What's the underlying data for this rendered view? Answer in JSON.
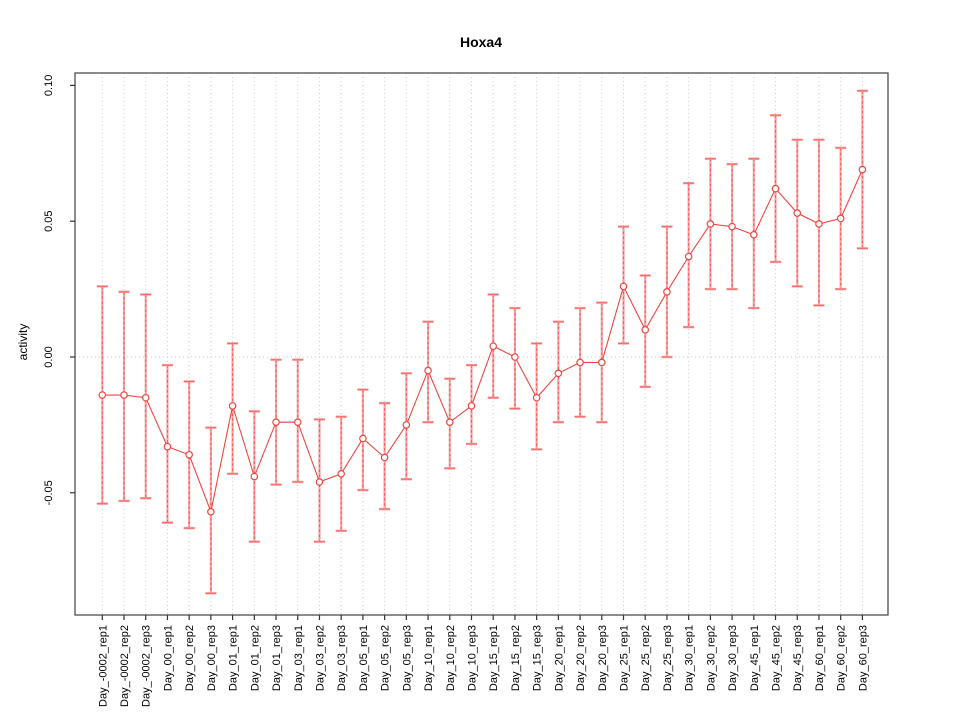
{
  "window": {
    "title": "Hoxa4"
  },
  "chart_data": {
    "type": "line",
    "title": "Hoxa4",
    "xlabel": "",
    "ylabel": "activity",
    "legend": "none",
    "grid": {
      "vertical": "dotted line at every x category",
      "horizontal": "dotted line at y=0 only"
    },
    "ylim": [
      -0.095,
      0.105
    ],
    "yticks": [
      -0.05,
      0.0,
      0.05,
      0.1
    ],
    "ytick_labels": [
      "-0.05",
      "0.00",
      "0.05",
      "0.10"
    ],
    "categories": [
      "Day_-0002_rep1",
      "Day_-0002_rep2",
      "Day_-0002_rep3",
      "Day_00_rep1",
      "Day_00_rep2",
      "Day_00_rep3",
      "Day_01_rep1",
      "Day_01_rep2",
      "Day_01_rep3",
      "Day_03_rep1",
      "Day_03_rep2",
      "Day_03_rep3",
      "Day_05_rep1",
      "Day_05_rep2",
      "Day_05_rep3",
      "Day_10_rep1",
      "Day_10_rep2",
      "Day_10_rep3",
      "Day_15_rep1",
      "Day_15_rep2",
      "Day_15_rep3",
      "Day_20_rep1",
      "Day_20_rep2",
      "Day_20_rep3",
      "Day_25_rep1",
      "Day_25_rep2",
      "Day_25_rep3",
      "Day_30_rep1",
      "Day_30_rep2",
      "Day_30_rep3",
      "Day_45_rep1",
      "Day_45_rep2",
      "Day_45_rep3",
      "Day_60_rep1",
      "Day_60_rep2",
      "Day_60_rep3"
    ],
    "series": [
      {
        "name": "activity",
        "marker": "open-circle",
        "values": [
          -0.014,
          -0.014,
          -0.015,
          -0.033,
          -0.036,
          -0.057,
          -0.018,
          -0.044,
          -0.024,
          -0.024,
          -0.046,
          -0.043,
          -0.03,
          -0.037,
          -0.025,
          -0.005,
          -0.024,
          -0.018,
          0.004,
          0.0,
          -0.015,
          -0.006,
          -0.002,
          -0.002,
          0.026,
          0.01,
          0.024,
          0.037,
          0.049,
          0.048,
          0.045,
          0.062,
          0.053,
          0.049,
          0.051,
          0.069
        ],
        "error_lower": [
          -0.054,
          -0.053,
          -0.052,
          -0.061,
          -0.063,
          -0.087,
          -0.043,
          -0.068,
          -0.047,
          -0.046,
          -0.068,
          -0.064,
          -0.049,
          -0.056,
          -0.045,
          -0.024,
          -0.041,
          -0.032,
          -0.015,
          -0.019,
          -0.034,
          -0.024,
          -0.022,
          -0.024,
          0.005,
          -0.011,
          0.0,
          0.011,
          0.025,
          0.025,
          0.018,
          0.035,
          0.026,
          0.019,
          0.025,
          0.04
        ],
        "error_upper": [
          0.026,
          0.024,
          0.023,
          -0.003,
          -0.009,
          -0.026,
          0.005,
          -0.02,
          -0.001,
          -0.001,
          -0.023,
          -0.022,
          -0.012,
          -0.017,
          -0.006,
          0.013,
          -0.008,
          -0.003,
          0.023,
          0.018,
          0.005,
          0.013,
          0.018,
          0.02,
          0.048,
          0.03,
          0.048,
          0.064,
          0.073,
          0.071,
          0.073,
          0.089,
          0.08,
          0.08,
          0.077,
          0.098
        ]
      }
    ],
    "colors": {
      "point": "#ee4540",
      "line": "#ee4540",
      "error_bar": "#f9a0a0",
      "error_bar_dash": "#ee4540",
      "grid": "#cccccc",
      "box": "#4d4d4d",
      "tick": "#333333",
      "text": "#000000",
      "background": "#ffffff"
    }
  }
}
